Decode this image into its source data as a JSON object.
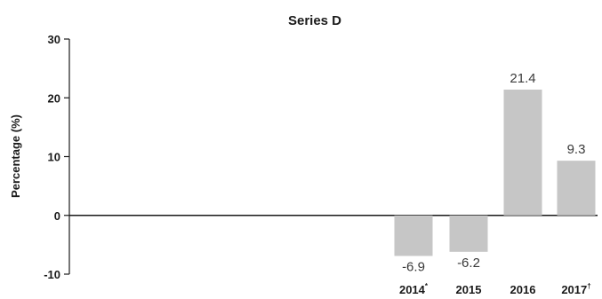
{
  "chart_data": {
    "type": "bar",
    "title": "Series D",
    "ylabel": "Percentage (%)",
    "xlabel": "",
    "ylim": [
      -10,
      30
    ],
    "yticks": [
      30,
      20,
      10,
      0,
      -10
    ],
    "categories": [
      {
        "label": "2014",
        "mark": "*"
      },
      {
        "label": "2015",
        "mark": ""
      },
      {
        "label": "2016",
        "mark": ""
      },
      {
        "label": "2017",
        "mark": "†"
      }
    ],
    "values": [
      -6.9,
      -6.2,
      21.4,
      9.3
    ],
    "value_labels": [
      "-6.9",
      "-6.2",
      "21.4",
      "9.3"
    ],
    "bar_color": "#c6c6c6",
    "axis_color": "#1a1a1a",
    "grid": false
  }
}
